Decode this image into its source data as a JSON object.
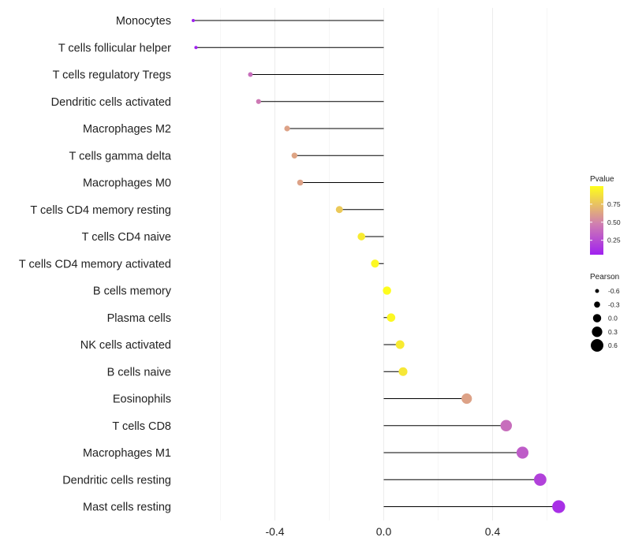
{
  "chart_data": {
    "type": "lollipop",
    "title": "",
    "xlabel": "",
    "ylabel": "",
    "xlim": [
      -0.7,
      0.65
    ],
    "xticks": [
      -0.4,
      0.0,
      0.4
    ],
    "xtick_labels": [
      "-0.4",
      "0.0",
      "0.4"
    ],
    "grid": true,
    "categories": [
      "Monocytes",
      "T cells follicular helper",
      "T cells regulatory  Tregs",
      "Dendritic cells activated",
      "Macrophages M2",
      "T cells gamma delta",
      "Macrophages M0",
      "T cells CD4 memory resting",
      "T cells CD4 naive",
      "T cells CD4 memory activated",
      "B cells memory",
      "Plasma cells",
      "NK cells activated",
      "B cells naive",
      "Eosinophils",
      "T cells CD8",
      "Macrophages M1",
      "Dendritic cells resting",
      "Mast cells resting"
    ],
    "pearson": [
      -0.7,
      -0.69,
      -0.49,
      -0.46,
      -0.355,
      -0.328,
      -0.307,
      -0.163,
      -0.082,
      -0.032,
      0.012,
      0.027,
      0.06,
      0.071,
      0.305,
      0.45,
      0.51,
      0.575,
      0.643
    ],
    "pvalue": [
      0.05,
      0.05,
      0.4,
      0.45,
      0.62,
      0.63,
      0.62,
      0.78,
      0.92,
      0.97,
      0.99,
      0.97,
      0.92,
      0.9,
      0.62,
      0.4,
      0.32,
      0.2,
      0.12
    ],
    "legend": {
      "color": {
        "title": "Pvalue",
        "ticks": [
          0.25,
          0.5,
          0.75
        ],
        "tick_labels": [
          "0.25",
          "0.50",
          "0.75"
        ],
        "range": [
          0.05,
          1.0
        ],
        "low_color": "#A020F0",
        "mid_color": "#D07FB0",
        "high_color": "#FFFF1A"
      },
      "size": {
        "title": "Pearson",
        "values": [
          -0.6,
          -0.3,
          0.0,
          0.3,
          0.6
        ],
        "labels": [
          "-0.6",
          "-0.3",
          "0.0",
          "0.3",
          "0.6"
        ]
      },
      "placement": "right"
    }
  }
}
